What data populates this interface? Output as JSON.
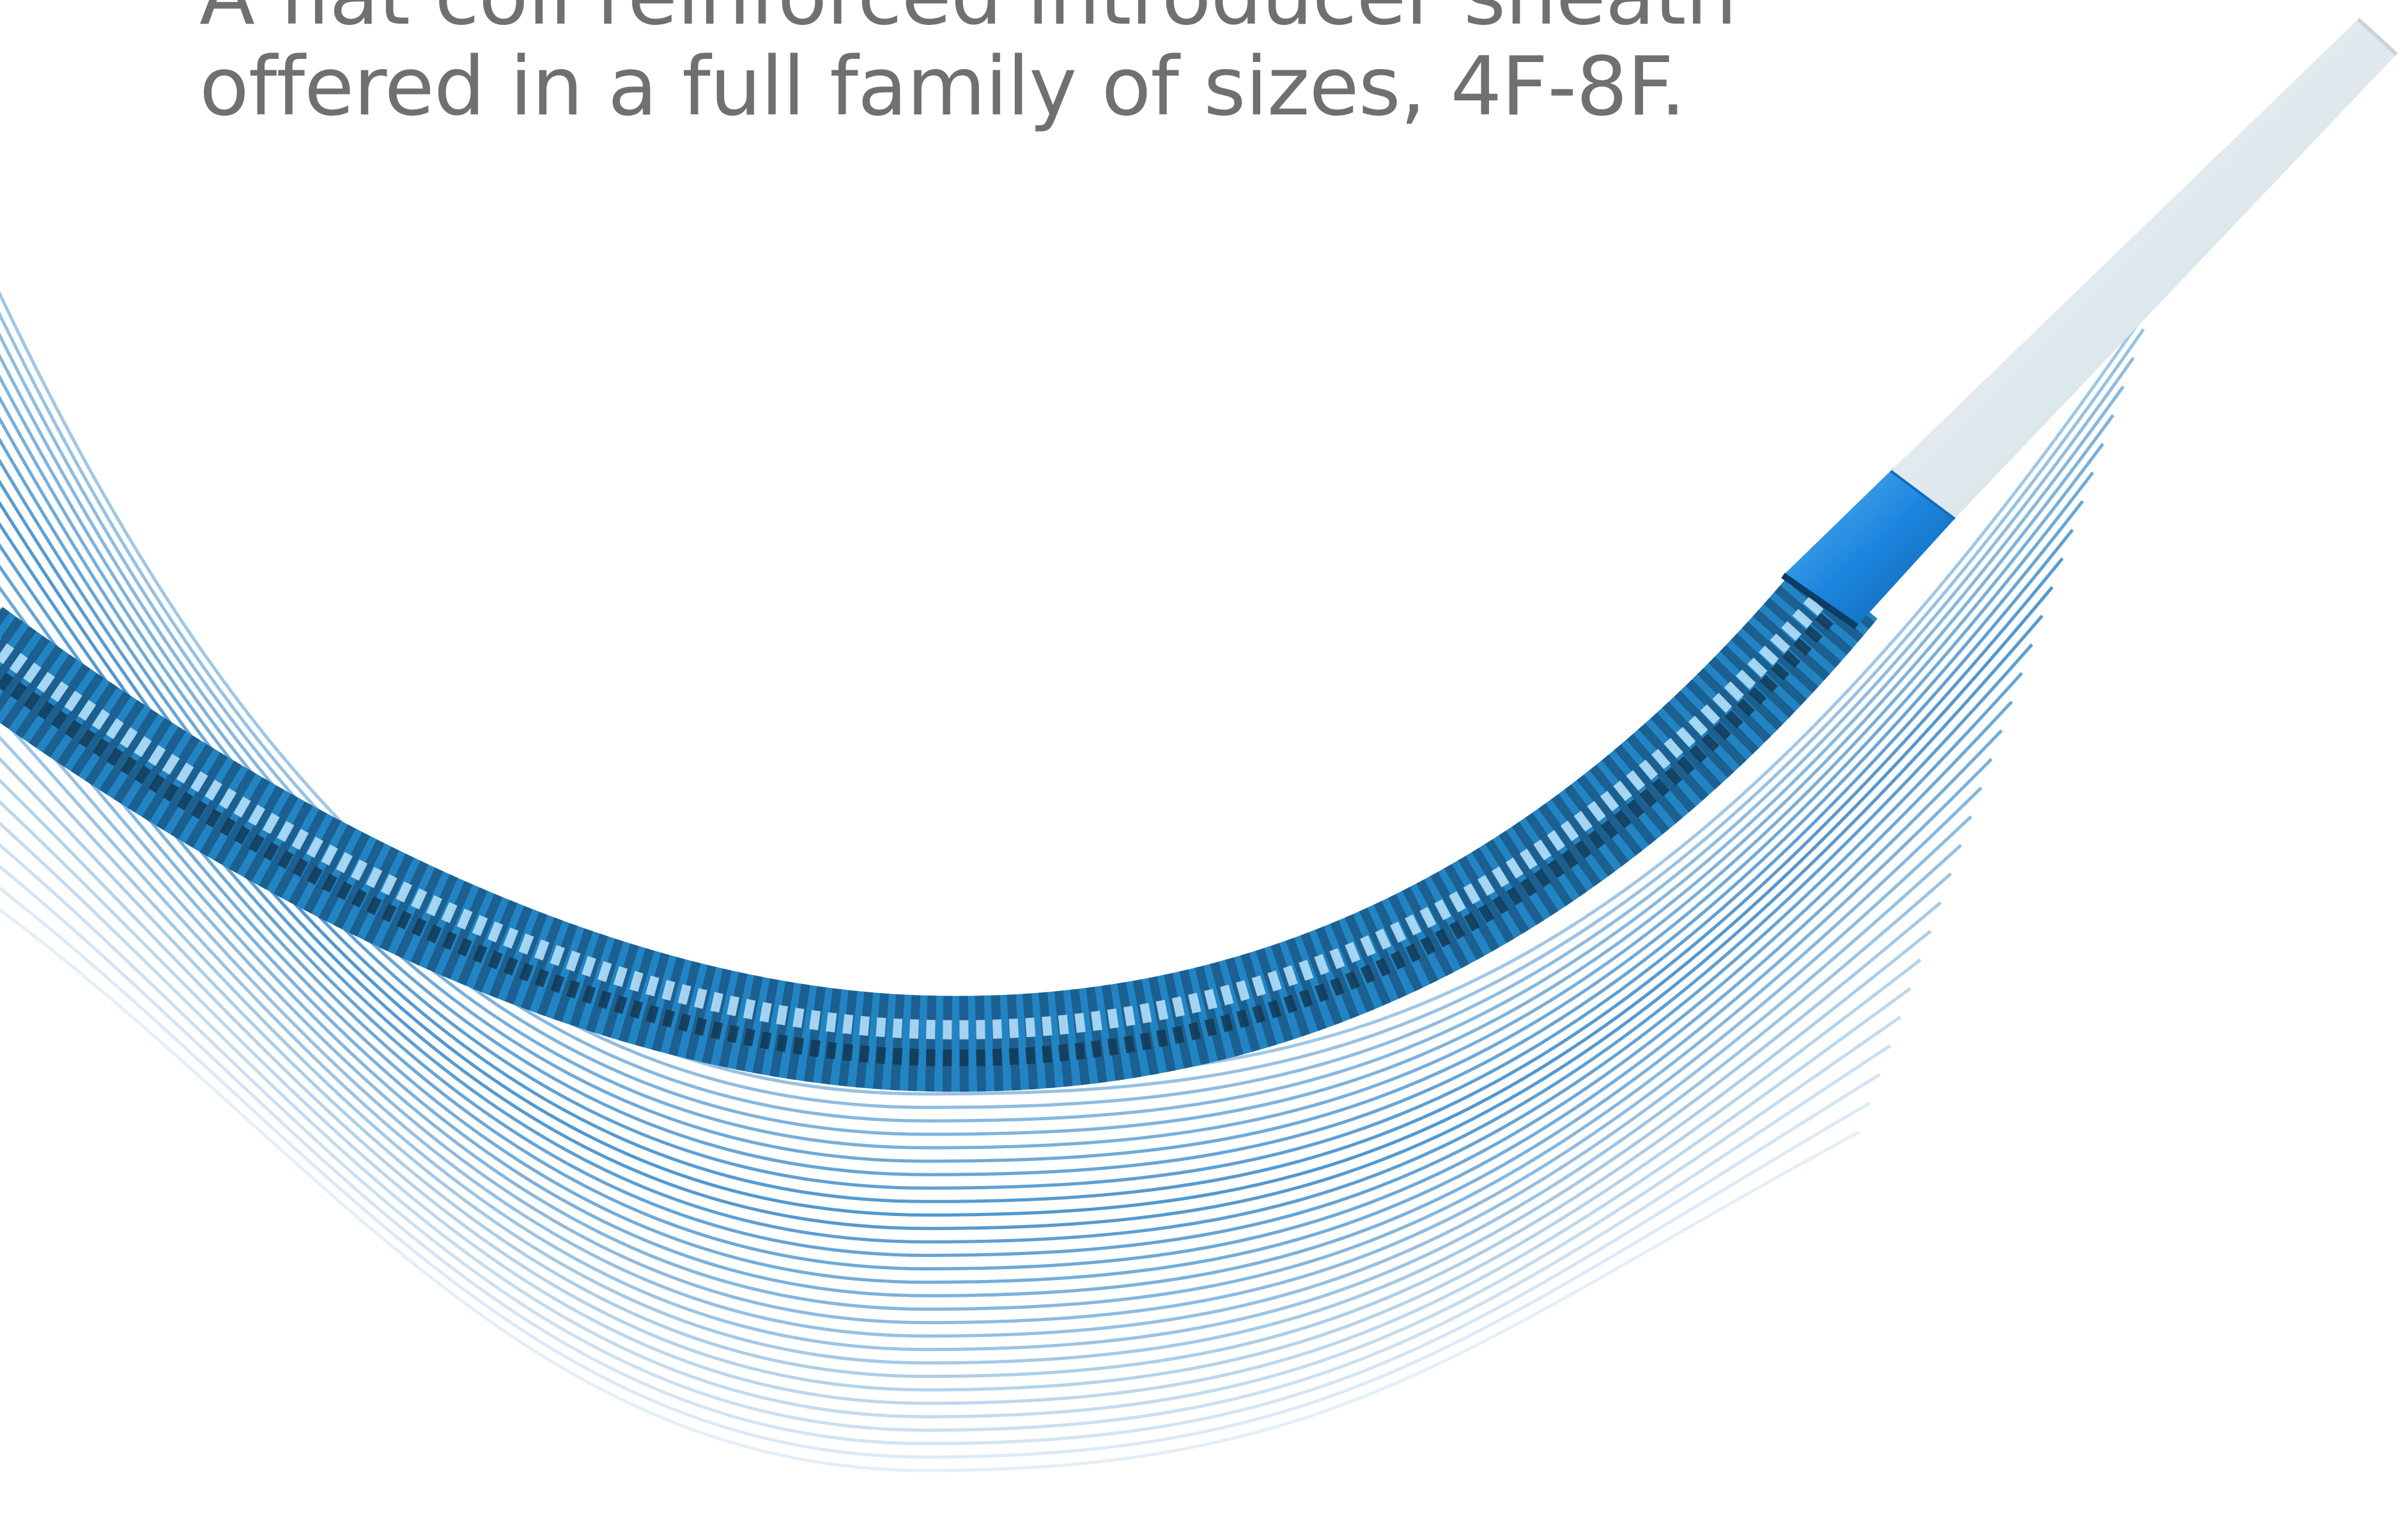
{
  "headline": {
    "line1": "A flat coil reinforced introducer sheath",
    "line2": "offered in a full family of sizes, 4F-8F."
  },
  "colors": {
    "text": "#707070",
    "background": "#ffffff",
    "sheath_blue": "#1f7fc0",
    "sheath_dark": "#0d2f4a",
    "coil_highlight": "#cfeeff",
    "tip_blue": "#2a8fe0",
    "dilator_white": "#e6eef2",
    "motion_line": "#2f84c6"
  },
  "illustration": {
    "subject": "introducer-sheath",
    "parts": [
      "coil-reinforced-shaft",
      "blue-tip-band",
      "white-dilator-tip",
      "motion-lines"
    ]
  }
}
